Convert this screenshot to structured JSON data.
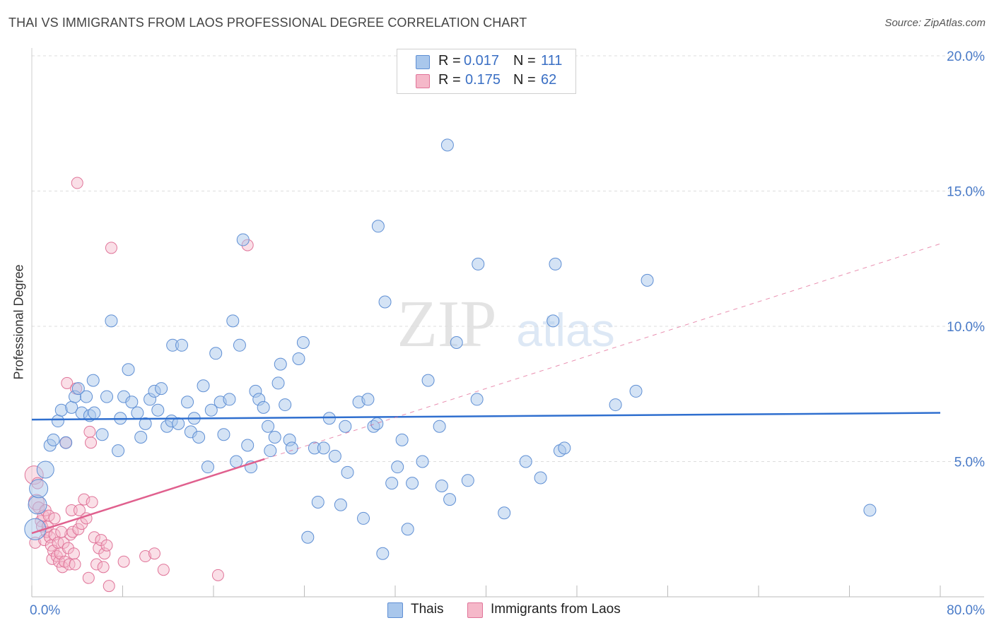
{
  "title": "THAI VS IMMIGRANTS FROM LAOS PROFESSIONAL DEGREE CORRELATION CHART",
  "source": "Source: ZipAtlas.com",
  "watermark": {
    "zip": "ZIP",
    "atlas": "atlas"
  },
  "colors": {
    "blue_fill": "#a9c7ec",
    "blue_stroke": "#5f8fd4",
    "blue_line": "#2f6fcf",
    "pink_fill": "#f5b8c9",
    "pink_stroke": "#e07499",
    "pink_line": "#e0608e",
    "grid": "#dddddd",
    "tick_text": "#4a7bc8"
  },
  "stats": [
    {
      "r_label": "R =",
      "r_value": "0.017",
      "n_label": "N =",
      "n_value": "111",
      "color": "#a9c7ec"
    },
    {
      "r_label": "R =",
      "r_value": "0.175",
      "n_label": "N =",
      "n_value": "62",
      "color": "#f5b8c9"
    }
  ],
  "legend": [
    {
      "label": "Thais",
      "color": "#a9c7ec"
    },
    {
      "label": "Immigrants from Laos",
      "color": "#f5b8c9"
    }
  ],
  "chart_data": {
    "type": "scatter",
    "title": "THAI VS IMMIGRANTS FROM LAOS PROFESSIONAL DEGREE CORRELATION CHART",
    "xlabel": "",
    "ylabel": "Professional Degree",
    "xlim": [
      0,
      80
    ],
    "ylim": [
      0,
      20
    ],
    "x_tick_labels": [
      "0.0%",
      "80.0%"
    ],
    "y_ticks": [
      5,
      10,
      15,
      20
    ],
    "y_tick_labels": [
      "5.0%",
      "10.0%",
      "15.0%",
      "20.0%"
    ],
    "grid": true,
    "series": [
      {
        "name": "Thais",
        "r": 0.017,
        "n": 111,
        "trend": {
          "x": [
            0,
            80
          ],
          "y": [
            6.55,
            6.8
          ],
          "dashed_extension": false
        },
        "points": [
          [
            0.3,
            2.5
          ],
          [
            0.5,
            3.4
          ],
          [
            0.6,
            4.0
          ],
          [
            1.2,
            4.7
          ],
          [
            1.6,
            5.6
          ],
          [
            1.9,
            5.8
          ],
          [
            2.3,
            6.5
          ],
          [
            2.6,
            6.9
          ],
          [
            3.0,
            5.7
          ],
          [
            3.5,
            7.0
          ],
          [
            3.8,
            7.4
          ],
          [
            4.1,
            7.7
          ],
          [
            4.4,
            6.8
          ],
          [
            4.8,
            7.4
          ],
          [
            5.1,
            6.7
          ],
          [
            5.5,
            6.8
          ],
          [
            5.4,
            8.0
          ],
          [
            6.2,
            6.0
          ],
          [
            6.6,
            7.4
          ],
          [
            7.0,
            10.2
          ],
          [
            7.6,
            5.4
          ],
          [
            7.8,
            6.6
          ],
          [
            8.1,
            7.4
          ],
          [
            8.5,
            8.4
          ],
          [
            8.8,
            7.2
          ],
          [
            9.3,
            6.8
          ],
          [
            9.6,
            5.9
          ],
          [
            10.0,
            6.4
          ],
          [
            10.4,
            7.3
          ],
          [
            10.8,
            7.6
          ],
          [
            11.1,
            6.9
          ],
          [
            11.4,
            7.7
          ],
          [
            11.9,
            6.3
          ],
          [
            12.3,
            6.5
          ],
          [
            12.4,
            9.3
          ],
          [
            12.9,
            6.4
          ],
          [
            13.2,
            9.3
          ],
          [
            13.7,
            7.2
          ],
          [
            14.0,
            6.1
          ],
          [
            14.3,
            6.6
          ],
          [
            14.7,
            5.9
          ],
          [
            15.1,
            7.8
          ],
          [
            15.5,
            4.8
          ],
          [
            15.8,
            6.9
          ],
          [
            16.2,
            9.0
          ],
          [
            16.6,
            7.2
          ],
          [
            16.9,
            6.0
          ],
          [
            17.4,
            7.3
          ],
          [
            17.7,
            10.2
          ],
          [
            18.0,
            5.0
          ],
          [
            18.3,
            9.3
          ],
          [
            18.6,
            13.2
          ],
          [
            19.0,
            5.6
          ],
          [
            19.3,
            4.8
          ],
          [
            19.7,
            7.6
          ],
          [
            20.0,
            7.3
          ],
          [
            20.4,
            7.0
          ],
          [
            20.8,
            6.3
          ],
          [
            21.0,
            5.4
          ],
          [
            21.4,
            5.9
          ],
          [
            21.7,
            7.9
          ],
          [
            21.9,
            8.6
          ],
          [
            22.3,
            7.1
          ],
          [
            22.7,
            5.8
          ],
          [
            22.9,
            5.5
          ],
          [
            23.5,
            8.8
          ],
          [
            23.9,
            9.4
          ],
          [
            24.3,
            2.2
          ],
          [
            24.9,
            5.5
          ],
          [
            25.2,
            3.5
          ],
          [
            25.7,
            5.5
          ],
          [
            26.2,
            6.6
          ],
          [
            26.7,
            5.2
          ],
          [
            27.2,
            3.4
          ],
          [
            27.6,
            6.3
          ],
          [
            27.8,
            4.6
          ],
          [
            28.8,
            7.2
          ],
          [
            29.2,
            2.9
          ],
          [
            29.6,
            7.3
          ],
          [
            30.1,
            6.3
          ],
          [
            30.4,
            6.4
          ],
          [
            30.5,
            13.7
          ],
          [
            30.9,
            1.6
          ],
          [
            31.1,
            10.9
          ],
          [
            31.7,
            4.2
          ],
          [
            32.2,
            4.8
          ],
          [
            32.6,
            5.8
          ],
          [
            33.1,
            2.5
          ],
          [
            33.5,
            4.2
          ],
          [
            34.4,
            5.0
          ],
          [
            34.9,
            8.0
          ],
          [
            35.9,
            6.3
          ],
          [
            36.1,
            4.1
          ],
          [
            36.6,
            16.7
          ],
          [
            36.8,
            3.6
          ],
          [
            37.4,
            9.4
          ],
          [
            38.4,
            4.3
          ],
          [
            39.2,
            7.3
          ],
          [
            39.3,
            12.3
          ],
          [
            41.6,
            3.1
          ],
          [
            43.5,
            5.0
          ],
          [
            44.8,
            4.4
          ],
          [
            45.9,
            10.2
          ],
          [
            46.1,
            12.3
          ],
          [
            46.5,
            5.4
          ],
          [
            46.9,
            5.5
          ],
          [
            51.4,
            7.1
          ],
          [
            53.2,
            7.6
          ],
          [
            54.2,
            11.7
          ],
          [
            73.8,
            3.2
          ]
        ]
      },
      {
        "name": "Immigrants from Laos",
        "r": 0.175,
        "n": 62,
        "trend": {
          "x": [
            0,
            80
          ],
          "y": [
            2.35,
            13.05
          ],
          "solid_until_x": 20.5,
          "dashed_extension": true
        },
        "points": [
          [
            0.2,
            4.5
          ],
          [
            0.3,
            2.0
          ],
          [
            0.4,
            3.5
          ],
          [
            0.5,
            4.2
          ],
          [
            0.6,
            3.3
          ],
          [
            0.8,
            2.8
          ],
          [
            0.9,
            2.6
          ],
          [
            1.0,
            3.0
          ],
          [
            1.1,
            2.1
          ],
          [
            1.2,
            3.2
          ],
          [
            1.3,
            2.4
          ],
          [
            1.4,
            2.6
          ],
          [
            1.5,
            3.0
          ],
          [
            1.6,
            2.2
          ],
          [
            1.7,
            1.9
          ],
          [
            1.8,
            1.4
          ],
          [
            1.9,
            1.7
          ],
          [
            2.0,
            2.3
          ],
          [
            2.2,
            1.5
          ],
          [
            2.3,
            2.0
          ],
          [
            2.4,
            1.3
          ],
          [
            2.5,
            1.6
          ],
          [
            2.7,
            1.1
          ],
          [
            2.8,
            2.0
          ],
          [
            2.9,
            1.3
          ],
          [
            3.0,
            5.7
          ],
          [
            3.1,
            7.9
          ],
          [
            3.2,
            1.8
          ],
          [
            3.3,
            1.2
          ],
          [
            3.4,
            2.3
          ],
          [
            3.5,
            3.2
          ],
          [
            3.6,
            2.4
          ],
          [
            3.7,
            1.6
          ],
          [
            3.8,
            1.2
          ],
          [
            3.9,
            7.7
          ],
          [
            4.0,
            15.3
          ],
          [
            4.1,
            2.5
          ],
          [
            4.2,
            3.2
          ],
          [
            4.4,
            2.7
          ],
          [
            4.6,
            3.6
          ],
          [
            4.8,
            2.9
          ],
          [
            5.0,
            0.7
          ],
          [
            5.1,
            6.1
          ],
          [
            5.2,
            5.7
          ],
          [
            5.3,
            3.5
          ],
          [
            5.5,
            2.2
          ],
          [
            5.7,
            1.2
          ],
          [
            5.9,
            1.8
          ],
          [
            6.1,
            2.1
          ],
          [
            6.3,
            1.1
          ],
          [
            6.4,
            1.6
          ],
          [
            6.6,
            1.9
          ],
          [
            6.8,
            0.4
          ],
          [
            7.0,
            12.9
          ],
          [
            8.1,
            1.3
          ],
          [
            10.0,
            1.5
          ],
          [
            10.8,
            1.6
          ],
          [
            11.6,
            1.0
          ],
          [
            16.4,
            0.8
          ],
          [
            19.0,
            13.0
          ],
          [
            2.0,
            2.9
          ],
          [
            2.6,
            2.4
          ]
        ]
      }
    ]
  }
}
